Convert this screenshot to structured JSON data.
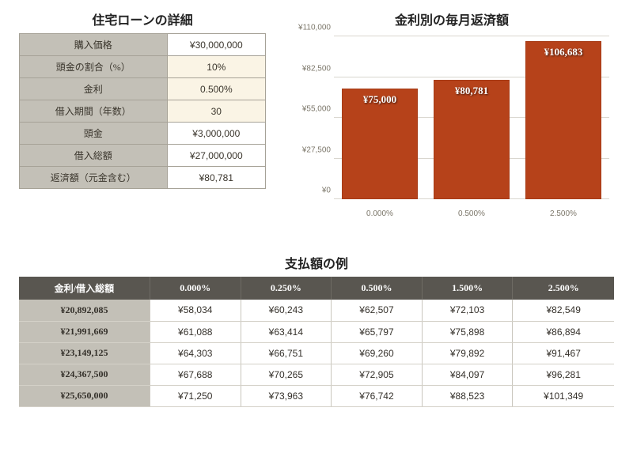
{
  "details": {
    "title": "住宅ローンの詳細",
    "rows": [
      {
        "label": "購入価格",
        "value": "¥30,000,000",
        "cream": false
      },
      {
        "label": "頭金の割合（%）",
        "value": "10%",
        "cream": true
      },
      {
        "label": "金利",
        "value": "0.500%",
        "cream": true
      },
      {
        "label": "借入期間（年数）",
        "value": "30",
        "cream": true
      },
      {
        "label": "頭金",
        "value": "¥3,000,000",
        "cream": false
      },
      {
        "label": "借入総額",
        "value": "¥27,000,000",
        "cream": false
      },
      {
        "label": "返済額（元金含む）",
        "value": "¥80,781",
        "cream": false
      }
    ]
  },
  "chart": {
    "title": "金利別の毎月返済額",
    "type": "bar",
    "ymax": 110000,
    "ystep": 27500,
    "yticks": [
      "¥0",
      "¥27,500",
      "¥55,000",
      "¥82,500",
      "¥110,000"
    ],
    "bar_color": "#b6421a",
    "grid_color": "#d9d6cf",
    "label_color": "#7b7669",
    "barlabel_color": "#ffffff",
    "bars": [
      {
        "x": "0.000%",
        "value": 75000,
        "label": "¥75,000"
      },
      {
        "x": "0.500%",
        "value": 80781,
        "label": "¥80,781"
      },
      {
        "x": "2.500%",
        "value": 106683,
        "label": "¥106,683"
      }
    ]
  },
  "payment": {
    "title": "支払額の例",
    "header_row_label": "金利/借入総額",
    "columns": [
      "0.000%",
      "0.250%",
      "0.500%",
      "1.500%",
      "2.500%"
    ],
    "rows": [
      {
        "head": "¥20,892,085",
        "cells": [
          "¥58,034",
          "¥60,243",
          "¥62,507",
          "¥72,103",
          "¥82,549"
        ]
      },
      {
        "head": "¥21,991,669",
        "cells": [
          "¥61,088",
          "¥63,414",
          "¥65,797",
          "¥75,898",
          "¥86,894"
        ]
      },
      {
        "head": "¥23,149,125",
        "cells": [
          "¥64,303",
          "¥66,751",
          "¥69,260",
          "¥79,892",
          "¥91,467"
        ]
      },
      {
        "head": "¥24,367,500",
        "cells": [
          "¥67,688",
          "¥70,265",
          "¥72,905",
          "¥84,097",
          "¥96,281"
        ]
      },
      {
        "head": "¥25,650,000",
        "cells": [
          "¥71,250",
          "¥73,963",
          "¥76,742",
          "¥88,523",
          "¥101,349"
        ]
      }
    ]
  }
}
